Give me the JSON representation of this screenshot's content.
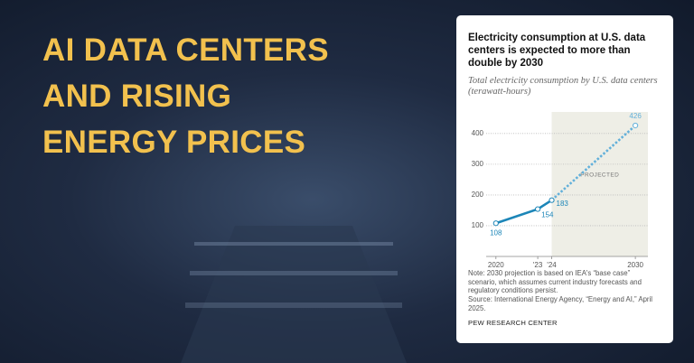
{
  "headline": [
    "AI DATA CENTERS",
    "AND RISING",
    "ENERGY PRICES"
  ],
  "chart_data": {
    "type": "line",
    "title": "Electricity consumption at U.S. data centers is expected to more than double by 2030",
    "subtitle": "Total electricity consumption by U.S. data centers (terawatt-hours)",
    "x": [
      2020,
      2023,
      2024,
      2030
    ],
    "xlim": [
      2019.3,
      2030.9
    ],
    "xticks": [
      2020,
      {
        "value": 2023,
        "label": "'23"
      },
      {
        "value": 2024,
        "label": "'24"
      },
      2030
    ],
    "ylim": [
      0,
      470
    ],
    "yticks": [
      100,
      200,
      300,
      400
    ],
    "grid": true,
    "series": [
      {
        "color": "#1c86b8",
        "projected_color": "#62b0da",
        "values": [
          108,
          154,
          183,
          426
        ]
      }
    ],
    "projected": {
      "from": 2024,
      "label": "PROJECTED",
      "shade": "#eeeee6"
    },
    "note": "Note: 2030 projection is based on IEA's “base case” scenario, which assumes current industry forecasts and regulatory conditions persist.",
    "source": "Source: International Energy Agency, “Energy and AI,” April 2025.",
    "credit": "PEW RESEARCH CENTER"
  }
}
